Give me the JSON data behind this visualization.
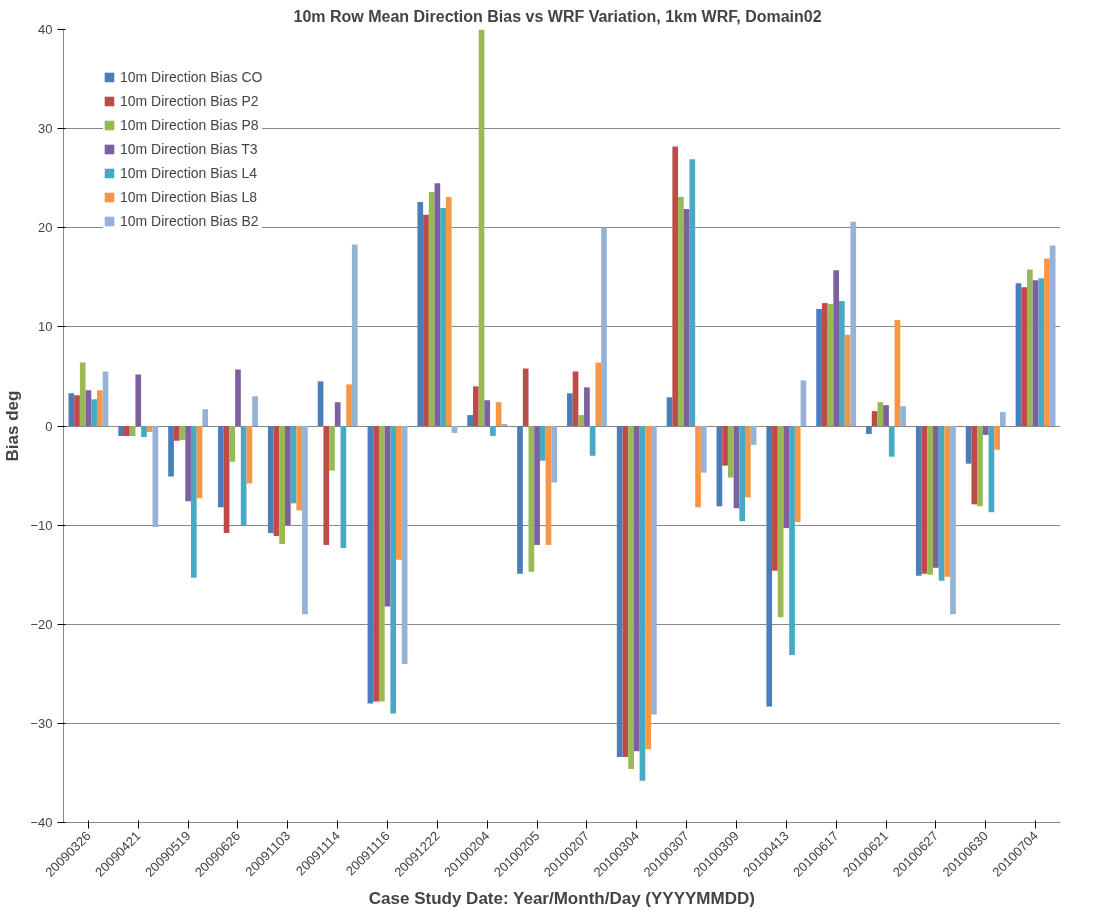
{
  "chart_data": {
    "type": "bar",
    "title": "10m Row Mean Direction  Bias  vs WRF Variation, 1km WRF, Domain02",
    "xlabel": "Case Study Date: Year/Month/Day (YYYYMMDD)",
    "ylabel": "Bias deg",
    "categories": [
      "20090326",
      "20090421",
      "20090519",
      "20090626",
      "20091103",
      "20091114",
      "20091116",
      "20091222",
      "20100204",
      "20100205",
      "20100207",
      "20100304",
      "20100307",
      "20100309",
      "20100413",
      "20100617",
      "20100621",
      "20100627",
      "20100630",
      "20100704"
    ],
    "series": [
      {
        "name": "10m Direction Bias CO",
        "color": "#4a7ebb",
        "values": [
          3.3,
          -1,
          -5.1,
          -8.2,
          -10.8,
          4.5,
          -28,
          22.6,
          1.1,
          -14.9,
          3.3,
          -33.4,
          2.9,
          -8.1,
          -28.3,
          11.8,
          -0.8,
          -15.1,
          -3.8,
          14.4
        ]
      },
      {
        "name": "10m Direction Bias P2",
        "color": "#be4b48",
        "values": [
          3.1,
          -1,
          -1.5,
          -10.8,
          -11.1,
          -12,
          -27.8,
          21.3,
          4,
          5.8,
          5.5,
          -33.4,
          28.2,
          -4,
          -14.6,
          12.4,
          1.5,
          -14.9,
          -7.9,
          14
        ]
      },
      {
        "name": "10m Direction Bias P8",
        "color": "#98b954",
        "values": [
          6.4,
          -1,
          -1.4,
          -3.6,
          -11.9,
          -4.5,
          -27.8,
          23.6,
          40,
          -14.7,
          1.1,
          -34.6,
          23.1,
          -5.2,
          -19.3,
          12.3,
          2.4,
          -15,
          -8.1,
          15.8
        ]
      },
      {
        "name": "10m Direction Bias T3",
        "color": "#7d60a0",
        "values": [
          3.6,
          5.2,
          -7.6,
          5.7,
          -10,
          2.4,
          -18.2,
          24.5,
          2.6,
          -12,
          3.9,
          -32.8,
          21.9,
          -8.3,
          -10.3,
          15.7,
          2.1,
          -14.3,
          -0.9,
          14.7
        ]
      },
      {
        "name": "10m Direction Bias L4",
        "color": "#46aac5",
        "values": [
          2.7,
          -1.1,
          -15.3,
          -10,
          -7.8,
          -12.3,
          -29,
          22,
          -1,
          -3.5,
          -3,
          -35.8,
          26.9,
          -9.6,
          -23.1,
          12.6,
          -3.1,
          -15.6,
          -8.7,
          14.9
        ]
      },
      {
        "name": "10m Direction Bias L8",
        "color": "#f79646",
        "values": [
          3.6,
          -0.6,
          -7.3,
          -5.8,
          -8.5,
          4.2,
          -13.5,
          23.1,
          2.4,
          -12,
          6.4,
          -32.6,
          -8.2,
          -7.2,
          -9.7,
          9.2,
          10.7,
          -15.2,
          -2.4,
          16.9
        ]
      },
      {
        "name": "10m Direction Bias B2",
        "color": "#95b3d7",
        "values": [
          5.5,
          -10.2,
          1.7,
          3,
          -19,
          18.3,
          -24,
          -0.7,
          0.2,
          -5.7,
          20,
          -29.1,
          -4.7,
          -1.9,
          4.6,
          20.6,
          2,
          -19,
          1.4,
          18.2
        ]
      }
    ],
    "ylim": [
      -40,
      40
    ],
    "yticks": [
      -40,
      -30,
      -20,
      -10,
      0,
      10,
      20,
      30,
      40
    ],
    "grid": "y",
    "legend": "top left"
  }
}
